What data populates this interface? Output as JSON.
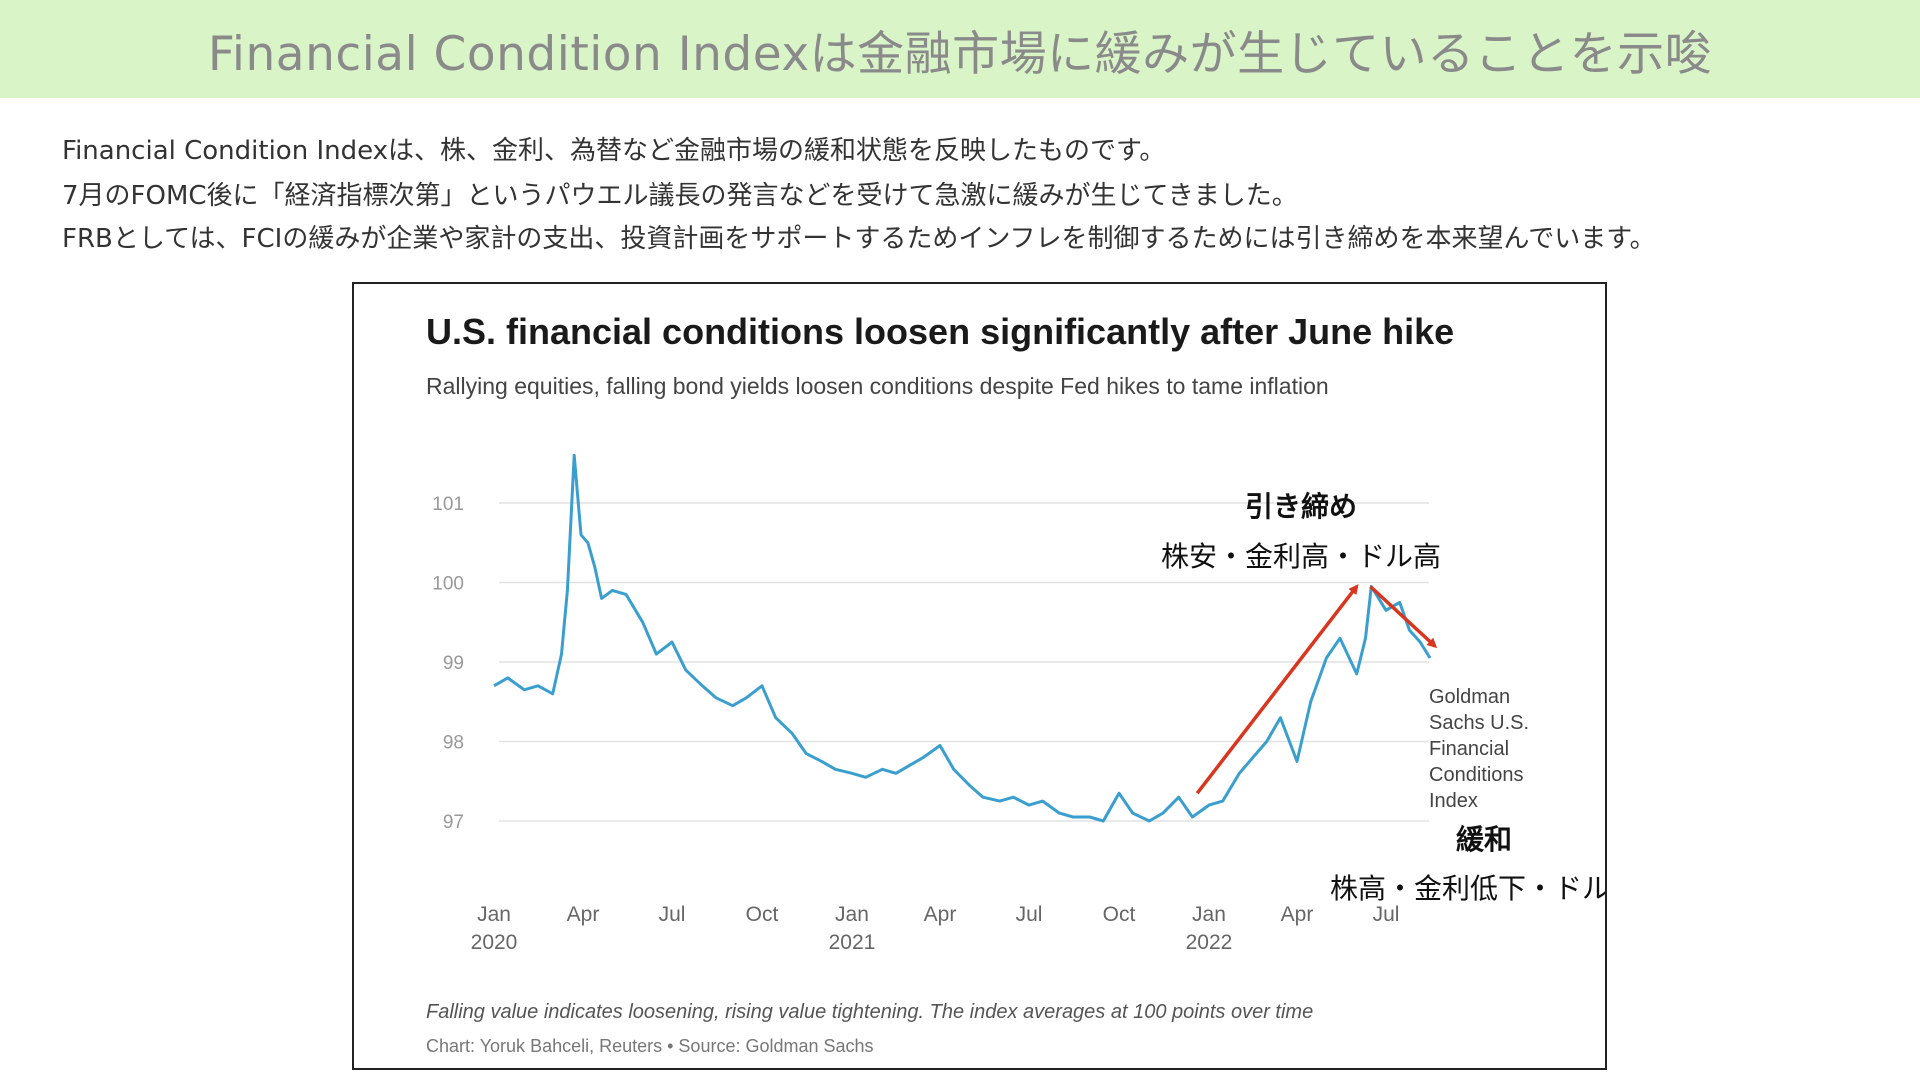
{
  "page": {
    "banner_title": "Financial Condition Indexは金融市場に緩みが生じていることを示唆",
    "banner_bg": "#d9f5c8",
    "intro_lines": [
      "Financial Condition Indexは、株、金利、為替など金融市場の緩和状態を反映したものです。",
      "7月のFOMC後に「経済指標次第」というパウエル議長の発言などを受けて急激に緩みが生じてきました。",
      "FRBとしては、FCIの緩みが企業や家計の支出、投資計画をサポートするためインフレを制御するためには引き締めを本来望んでいます。"
    ],
    "highlight_color": "#e0301e"
  },
  "chart_data": {
    "type": "line",
    "title": "U.S. financial conditions loosen significantly after June hike",
    "subtitle": "Rallying equities, falling bond yields loosen conditions despite Fed hikes to tame inflation",
    "xlabel": "",
    "ylabel": "",
    "ylim": [
      96.8,
      101.3
    ],
    "yticks": [
      97,
      98,
      99,
      100,
      101
    ],
    "xticks": [
      {
        "x": "2020-01-01",
        "label": "Jan",
        "sublabel": "2020"
      },
      {
        "x": "2020-04-01",
        "label": "Apr",
        "sublabel": ""
      },
      {
        "x": "2020-07-01",
        "label": "Jul",
        "sublabel": ""
      },
      {
        "x": "2020-10-01",
        "label": "Oct",
        "sublabel": ""
      },
      {
        "x": "2021-01-01",
        "label": "Jan",
        "sublabel": "2021"
      },
      {
        "x": "2021-04-01",
        "label": "Apr",
        "sublabel": ""
      },
      {
        "x": "2021-07-01",
        "label": "Jul",
        "sublabel": ""
      },
      {
        "x": "2021-10-01",
        "label": "Oct",
        "sublabel": ""
      },
      {
        "x": "2022-01-01",
        "label": "Jan",
        "sublabel": "2022"
      },
      {
        "x": "2022-04-01",
        "label": "Apr",
        "sublabel": ""
      },
      {
        "x": "2022-07-01",
        "label": "Jul",
        "sublabel": ""
      }
    ],
    "grid": true,
    "line_color": "#3a9fcf",
    "series": [
      {
        "name": "Goldman Sachs U.S. Financial Conditions Index",
        "x": [
          "2020-01-01",
          "2020-01-15",
          "2020-02-01",
          "2020-02-15",
          "2020-03-01",
          "2020-03-10",
          "2020-03-16",
          "2020-03-23",
          "2020-03-30",
          "2020-04-06",
          "2020-04-13",
          "2020-04-20",
          "2020-05-01",
          "2020-05-15",
          "2020-06-01",
          "2020-06-15",
          "2020-07-01",
          "2020-07-15",
          "2020-08-01",
          "2020-08-15",
          "2020-09-01",
          "2020-09-15",
          "2020-10-01",
          "2020-10-15",
          "2020-11-01",
          "2020-11-15",
          "2020-12-01",
          "2020-12-15",
          "2021-01-01",
          "2021-01-15",
          "2021-02-01",
          "2021-02-15",
          "2021-03-01",
          "2021-03-15",
          "2021-04-01",
          "2021-04-15",
          "2021-05-01",
          "2021-05-15",
          "2021-06-01",
          "2021-06-15",
          "2021-07-01",
          "2021-07-15",
          "2021-08-01",
          "2021-08-15",
          "2021-09-01",
          "2021-09-15",
          "2021-10-01",
          "2021-10-15",
          "2021-11-01",
          "2021-11-15",
          "2021-12-01",
          "2021-12-15",
          "2022-01-01",
          "2022-01-15",
          "2022-02-01",
          "2022-02-15",
          "2022-03-01",
          "2022-03-15",
          "2022-04-01",
          "2022-04-15",
          "2022-05-01",
          "2022-05-15",
          "2022-06-01",
          "2022-06-10",
          "2022-06-16",
          "2022-07-01",
          "2022-07-15",
          "2022-07-25",
          "2022-08-05",
          "2022-08-15"
        ],
        "values": [
          98.7,
          98.8,
          98.65,
          98.7,
          98.6,
          99.1,
          99.9,
          101.6,
          100.6,
          100.5,
          100.2,
          99.8,
          99.9,
          99.85,
          99.5,
          99.1,
          99.25,
          98.9,
          98.7,
          98.55,
          98.45,
          98.55,
          98.7,
          98.3,
          98.1,
          97.85,
          97.75,
          97.65,
          97.6,
          97.55,
          97.65,
          97.6,
          97.7,
          97.8,
          97.95,
          97.65,
          97.45,
          97.3,
          97.25,
          97.3,
          97.2,
          97.25,
          97.1,
          97.05,
          97.05,
          97.0,
          97.35,
          97.1,
          97.0,
          97.1,
          97.3,
          97.05,
          97.2,
          97.25,
          97.6,
          97.8,
          98.0,
          98.3,
          97.75,
          98.5,
          99.05,
          99.3,
          98.85,
          99.3,
          99.95,
          99.65,
          99.75,
          99.4,
          99.25,
          99.05
        ]
      }
    ],
    "series_label": "Goldman Sachs U.S. Financial Conditions Index",
    "series_label_lines": [
      "Goldman",
      "Sachs U.S.",
      "Financial",
      "Conditions",
      "Index"
    ],
    "annotations": {
      "tighten_title": "引き締め",
      "tighten_desc": "株安・金利高・ドル高",
      "loosen_title": "緩和",
      "loosen_desc": "株高・金利低下・ドル安",
      "arrow_color": "#d9361f",
      "arrows": [
        {
          "from": [
            "2021-12-20",
            97.35
          ],
          "to": [
            "2022-06-01",
            99.95
          ]
        },
        {
          "from": [
            "2022-06-15",
            99.95
          ],
          "to": [
            "2022-08-20",
            99.2
          ]
        }
      ]
    },
    "footnote": "Falling value indicates loosening, rising value tightening. The index averages at 100 points over time",
    "credit": "Chart: Yoruk Bahceli, Reuters • Source: Goldman Sachs"
  }
}
